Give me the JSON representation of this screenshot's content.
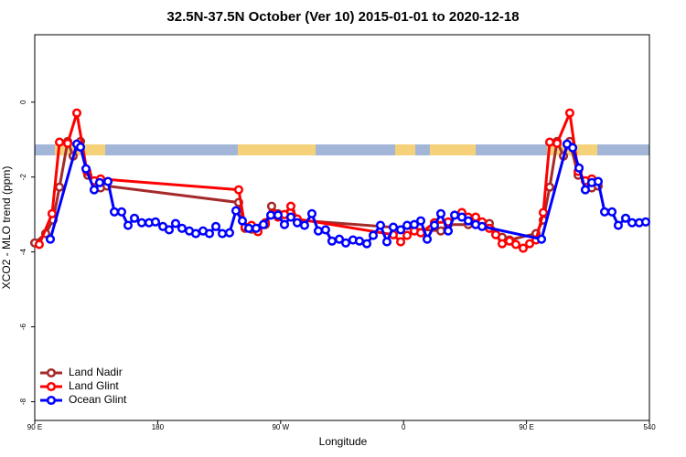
{
  "chart_data": {
    "type": "line",
    "title": "32.5N-37.5N October (Ver 10)   2015-01-01 to 2020-12-18",
    "x_label": "Longitude",
    "y_label": "XCO2 - MLO trend (ppm)",
    "xlim": [
      90,
      540
    ],
    "ylim": [
      -8.5,
      1.8
    ],
    "xticks": [
      {
        "value": 90,
        "label": "90 E"
      },
      180,
      {
        "value": 270,
        "label": "90 W"
      },
      {
        "value": 360,
        "label": "0"
      },
      {
        "value": 450,
        "label": "90 E"
      },
      540
    ],
    "yticks": [
      0,
      -2,
      -4,
      -6,
      -8
    ],
    "legend": "bottom-left",
    "series": [
      {
        "name": "Land Nadir",
        "color": "#a52a2a",
        "x": [
          90,
          98.0,
          103.4,
          108.1,
          114.1,
          118.1,
          123.5,
          128.8,
          138.2,
          142.9,
          239.3,
          244.0,
          248.7,
          253.4,
          258.8,
          263.4,
          268.1,
          272.8,
          277.5,
          282.2,
          387.3,
          392.7,
          407.4,
          417.5,
          422.8,
          432.2,
          437.6,
          457.0,
          462.3,
          467.0,
          472.4,
          477.1,
          481.7,
          487.8,
          497.8,
          502.5
        ],
        "values": [
          -3.76,
          -3.51,
          -3.15,
          -2.27,
          -1.05,
          -1.44,
          -1.05,
          -1.95,
          -2.29,
          -2.24,
          -2.68,
          -3.37,
          -3.39,
          -3.37,
          -3.27,
          -2.78,
          -2.98,
          -3.12,
          -2.93,
          -3.15,
          -3.44,
          -3.27,
          -3.27,
          -3.29,
          -3.24,
          -3.61,
          -3.68,
          -3.51,
          -3.15,
          -2.27,
          -1.05,
          -1.44,
          -1.05,
          -1.95,
          -2.29,
          -2.24
        ]
      },
      {
        "name": "Land Glint",
        "color": "#ff0000",
        "x": [
          93.3,
          102.7,
          108.1,
          114.1,
          120.8,
          128.2,
          133.5,
          138.2,
          239.3,
          244.0,
          248.7,
          253.4,
          258.8,
          264.1,
          268.1,
          272.8,
          277.5,
          282.2,
          352.5,
          357.9,
          362.6,
          367.9,
          372.6,
          382.6,
          392.7,
          402.7,
          407.4,
          412.8,
          417.5,
          422.8,
          427.5,
          432.2,
          437.6,
          442.2,
          447.6,
          452.3,
          457.0,
          462.3,
          467.0,
          472.4,
          481.7,
          487.8,
          493.1,
          497.8
        ],
        "values": [
          -3.8,
          -2.98,
          -1.07,
          -1.1,
          -0.29,
          -1.85,
          -2.1,
          -2.05,
          -2.34,
          -3.34,
          -3.29,
          -3.46,
          -3.22,
          -2.98,
          -3.07,
          -3.0,
          -2.78,
          -3.12,
          -3.54,
          -3.73,
          -3.56,
          -3.44,
          -3.49,
          -3.22,
          -3.2,
          -2.95,
          -3.07,
          -3.07,
          -3.2,
          -3.37,
          -3.54,
          -3.78,
          -3.71,
          -3.8,
          -3.9,
          -3.78,
          -3.68,
          -2.95,
          -1.07,
          -1.1,
          -0.29,
          -1.85,
          -2.1,
          -2.05
        ]
      },
      {
        "name": "Ocean Glint",
        "color": "#0000ff",
        "x": [
          101.4,
          120.8,
          123.5,
          127.5,
          133.5,
          137.5,
          143.6,
          148.3,
          153.6,
          158.3,
          163.0,
          168.3,
          173.7,
          178.4,
          183.8,
          188.4,
          193.1,
          197.8,
          203.2,
          207.9,
          213.2,
          217.9,
          222.6,
          227.3,
          232.6,
          237.3,
          242.0,
          246.7,
          252.1,
          257.4,
          262.8,
          268.1,
          272.8,
          277.5,
          282.2,
          287.5,
          292.9,
          297.6,
          302.9,
          307.6,
          313.0,
          317.7,
          323.0,
          327.7,
          333.1,
          337.8,
          343.1,
          347.8,
          352.5,
          357.9,
          362.6,
          367.9,
          372.6,
          377.3,
          382.6,
          387.3,
          392.7,
          397.4,
          402.7,
          407.4,
          412.8,
          417.5,
          461.0,
          479.7,
          483.8,
          488.5,
          493.1,
          497.8,
          502.5,
          507.2,
          512.6,
          517.2,
          522.6,
          527.3,
          532.6,
          537.3
        ],
        "values": [
          -3.66,
          -1.12,
          -1.2,
          -1.78,
          -2.34,
          -2.15,
          -2.12,
          -2.93,
          -2.93,
          -3.29,
          -3.1,
          -3.22,
          -3.22,
          -3.2,
          -3.32,
          -3.41,
          -3.24,
          -3.37,
          -3.44,
          -3.51,
          -3.44,
          -3.51,
          -3.32,
          -3.51,
          -3.49,
          -2.9,
          -3.17,
          -3.37,
          -3.37,
          -3.27,
          -3.02,
          -3.02,
          -3.27,
          -3.07,
          -3.22,
          -3.29,
          -2.98,
          -3.44,
          -3.41,
          -3.71,
          -3.66,
          -3.76,
          -3.68,
          -3.71,
          -3.78,
          -3.56,
          -3.29,
          -3.73,
          -3.34,
          -3.41,
          -3.29,
          -3.27,
          -3.17,
          -3.66,
          -3.29,
          -2.98,
          -3.44,
          -3.02,
          -3.07,
          -3.17,
          -3.27,
          -3.32,
          -3.66,
          -1.12,
          -1.22,
          -1.76,
          -2.34,
          -2.15,
          -2.12,
          -2.93,
          -2.93,
          -3.29,
          -3.1,
          -3.22,
          -3.22,
          -3.2
        ]
      }
    ]
  }
}
